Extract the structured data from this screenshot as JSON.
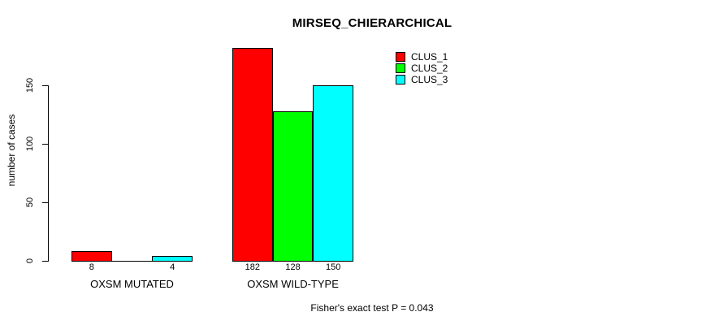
{
  "page": {
    "background": "#FFFFFF",
    "foreground": "#000000"
  },
  "chart_data": {
    "type": "bar",
    "title": "MIRSEQ_CHIERARCHICAL",
    "ylabel": "number of cases",
    "xlabel": "",
    "annotation": "Fisher's exact test P = 0.043",
    "axis": {
      "yticks": [
        0,
        50,
        100,
        150
      ],
      "ylim": [
        0,
        190
      ],
      "grid": false
    },
    "legend": {
      "position": "top-right-inside",
      "entries": [
        {
          "label": "CLUS_1",
          "color": "#FF0000"
        },
        {
          "label": "CLUS_2",
          "color": "#00FF00"
        },
        {
          "label": "CLUS_3",
          "color": "#00FFFF"
        }
      ]
    },
    "categories": [
      "OXSM MUTATED",
      "OXSM WILD-TYPE"
    ],
    "series": [
      {
        "name": "CLUS_1",
        "color": "#FF0000",
        "values": [
          8,
          182
        ]
      },
      {
        "name": "CLUS_2",
        "color": "#00FF00",
        "values": [
          0,
          128
        ]
      },
      {
        "name": "CLUS_3",
        "color": "#00FFFF",
        "values": [
          4,
          150
        ]
      }
    ],
    "bar_value_labels": [
      [
        "8",
        "",
        "4"
      ],
      [
        "182",
        "128",
        "150"
      ]
    ]
  }
}
